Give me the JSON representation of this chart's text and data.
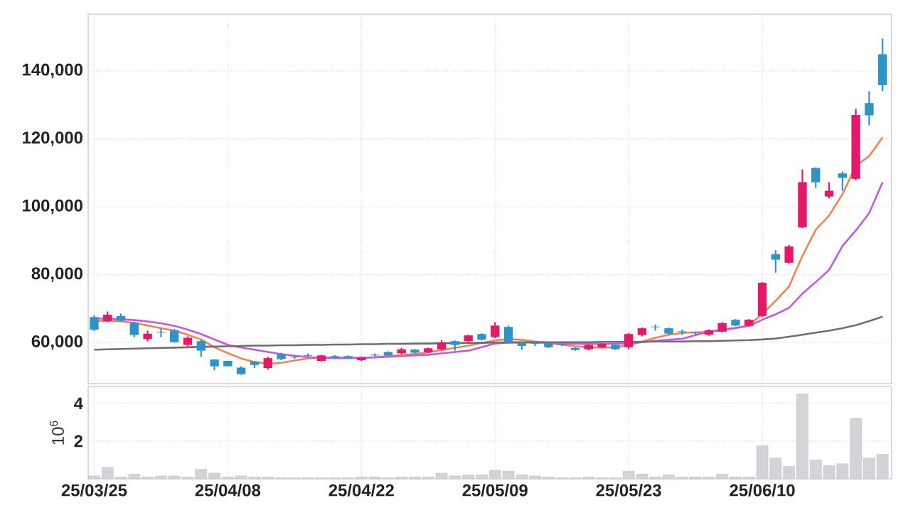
{
  "chart_data": [
    {
      "type": "candlestick",
      "categories": [
        null,
        null,
        null,
        null,
        null,
        null,
        null,
        null,
        null,
        null,
        null,
        null,
        null,
        null,
        null,
        null,
        null,
        null,
        null,
        null,
        null,
        null,
        null,
        null,
        null,
        null,
        null,
        null,
        null,
        null,
        null,
        null,
        null,
        null,
        null,
        null,
        null,
        null,
        null,
        null,
        null,
        null,
        null,
        null,
        null,
        null,
        null,
        null,
        null,
        null,
        null,
        null,
        null,
        null,
        null,
        null,
        null,
        null,
        null,
        null
      ],
      "ohlc": [
        [
          67500,
          68000,
          63400,
          63800
        ],
        [
          66300,
          69100,
          66000,
          68200
        ],
        [
          67800,
          68500,
          66100,
          66400
        ],
        [
          65900,
          66000,
          61500,
          62200
        ],
        [
          61000,
          63500,
          60300,
          62600
        ],
        [
          63100,
          64300,
          61600,
          62900
        ],
        [
          63600,
          64000,
          60000,
          60100
        ],
        [
          59300,
          61800,
          58900,
          61400
        ],
        [
          60400,
          60800,
          55800,
          57600
        ],
        [
          55000,
          55000,
          51800,
          53000
        ],
        [
          54600,
          54600,
          53000,
          53000
        ],
        [
          52600,
          53000,
          50500,
          50700
        ],
        [
          54400,
          54600,
          52500,
          53400
        ],
        [
          52500,
          55800,
          52000,
          55400
        ],
        [
          56600,
          57000,
          54800,
          55100
        ],
        [
          55800,
          56200,
          55200,
          55600
        ],
        [
          56300,
          56800,
          55700,
          56100
        ],
        [
          54600,
          56400,
          54400,
          56200
        ],
        [
          56000,
          56300,
          55400,
          55500
        ],
        [
          56000,
          56200,
          55300,
          55400
        ],
        [
          54800,
          55800,
          54600,
          55600
        ],
        [
          56400,
          56800,
          55900,
          56200
        ],
        [
          57200,
          57400,
          56000,
          56200
        ],
        [
          56800,
          58400,
          56500,
          58000
        ],
        [
          57900,
          58100,
          56700,
          57000
        ],
        [
          57100,
          58500,
          56900,
          58300
        ],
        [
          58000,
          60700,
          57800,
          60000
        ],
        [
          60400,
          60600,
          57600,
          59300
        ],
        [
          60400,
          62300,
          60200,
          62100
        ],
        [
          62500,
          62700,
          60600,
          60800
        ],
        [
          61600,
          66000,
          61300,
          65000
        ],
        [
          64600,
          65000,
          59900,
          60100
        ],
        [
          60000,
          60200,
          57900,
          59000
        ],
        [
          59800,
          60400,
          59000,
          59600
        ],
        [
          59700,
          59900,
          58400,
          58600
        ],
        [
          59400,
          59600,
          58900,
          59200
        ],
        [
          58400,
          58600,
          57600,
          57800
        ],
        [
          58000,
          59500,
          57700,
          59300
        ],
        [
          58600,
          59800,
          58400,
          59600
        ],
        [
          59300,
          59500,
          57800,
          58000
        ],
        [
          58600,
          62800,
          58000,
          62500
        ],
        [
          62200,
          64400,
          61800,
          64200
        ],
        [
          64700,
          65300,
          63500,
          64500
        ],
        [
          64200,
          64400,
          62400,
          62600
        ],
        [
          63300,
          63800,
          62200,
          63100
        ],
        [
          62900,
          63200,
          62300,
          62700
        ],
        [
          62300,
          63900,
          62000,
          63600
        ],
        [
          63200,
          66000,
          63000,
          65700
        ],
        [
          66700,
          66900,
          64800,
          65000
        ],
        [
          64900,
          66900,
          64700,
          66700
        ],
        [
          67800,
          77800,
          67500,
          77600
        ],
        [
          86000,
          87200,
          80600,
          84400
        ],
        [
          83500,
          88700,
          83200,
          88300
        ],
        [
          93900,
          111000,
          93700,
          107200
        ],
        [
          111400,
          111600,
          105500,
          107200
        ],
        [
          103000,
          107200,
          102500,
          104700
        ],
        [
          109800,
          110400,
          104700,
          108500
        ],
        [
          108200,
          128800,
          107800,
          127000
        ],
        [
          130500,
          134000,
          124000,
          126900
        ],
        [
          144900,
          149500,
          134000,
          135800
        ]
      ],
      "colors": [
        "#2d94c9",
        "#e5196b",
        "#2d94c9",
        "#2d94c9",
        "#e5196b",
        "#2d94c9",
        "#2d94c9",
        "#e5196b",
        "#2d94c9",
        "#2d94c9",
        "#2d94c9",
        "#2d94c9",
        "#2d94c9",
        "#e5196b",
        "#2d94c9",
        "#2d94c9",
        "#2d94c9",
        "#e5196b",
        "#2d94c9",
        "#2d94c9",
        "#e5196b",
        "#2d94c9",
        "#2d94c9",
        "#e5196b",
        "#2d94c9",
        "#e5196b",
        "#e5196b",
        "#2d94c9",
        "#e5196b",
        "#2d94c9",
        "#e5196b",
        "#2d94c9",
        "#2d94c9",
        "#2d94c9",
        "#2d94c9",
        "#2d94c9",
        "#2d94c9",
        "#e5196b",
        "#e5196b",
        "#2d94c9",
        "#e5196b",
        "#e5196b",
        "#2d94c9",
        "#2d94c9",
        "#2d94c9",
        "#2d94c9",
        "#e5196b",
        "#e5196b",
        "#2d94c9",
        "#e5196b",
        "#e5196b",
        "#2d94c9",
        "#e5196b",
        "#e5196b",
        "#2d94c9",
        "#e5196b",
        "#2d94c9",
        "#e5196b",
        "#2d94c9",
        "#2d94c9"
      ],
      "series": [
        {
          "type": "line",
          "color": "#f0844c",
          "values": [
            66300,
            66400,
            66200,
            65800,
            65000,
            64200,
            63500,
            62300,
            60900,
            58600,
            56900,
            55300,
            54300,
            53700,
            54000,
            54700,
            55300,
            55600,
            55600,
            55500,
            55500,
            55700,
            56000,
            56300,
            56600,
            57100,
            57800,
            58400,
            59100,
            59900,
            60600,
            61000,
            60800,
            60300,
            59800,
            59400,
            58900,
            58600,
            58500,
            58600,
            59200,
            60300,
            61400,
            62300,
            62800,
            63000,
            63100,
            63600,
            64200,
            65100,
            68400,
            72300,
            76500,
            85500,
            93200,
            97400,
            103700,
            112000,
            114900,
            120400
          ]
        },
        {
          "type": "line",
          "color": "#c656e8",
          "values": [
            67100,
            67000,
            66800,
            66600,
            66200,
            65700,
            64900,
            63800,
            62500,
            60900,
            59300,
            58500,
            57900,
            57200,
            56600,
            56100,
            55700,
            55500,
            55400,
            55400,
            55500,
            55600,
            55800,
            56000,
            56200,
            56400,
            56800,
            57200,
            57600,
            58600,
            59700,
            60000,
            60100,
            60000,
            59900,
            59700,
            59600,
            59600,
            59600,
            59600,
            59700,
            60100,
            60500,
            60800,
            61100,
            62200,
            63200,
            63800,
            64300,
            64900,
            66700,
            68300,
            70200,
            74400,
            77800,
            81400,
            88400,
            93000,
            98100,
            107200
          ]
        },
        {
          "type": "line",
          "color": "#6e6e6e",
          "values": [
            57900,
            58000,
            58100,
            58200,
            58300,
            58400,
            58500,
            58600,
            58700,
            58800,
            58900,
            59000,
            59100,
            59100,
            59200,
            59200,
            59300,
            59300,
            59400,
            59400,
            59500,
            59500,
            59600,
            59600,
            59700,
            59700,
            59800,
            59800,
            59900,
            59900,
            60000,
            60000,
            60000,
            60100,
            60100,
            60100,
            60100,
            60100,
            60200,
            60200,
            60200,
            60200,
            60300,
            60300,
            60300,
            60400,
            60400,
            60500,
            60600,
            60700,
            60900,
            61200,
            61700,
            62300,
            62900,
            63500,
            64200,
            65100,
            66300,
            67600
          ]
        }
      ],
      "ylim": [
        47900,
        156700
      ],
      "yticks": [
        {
          "value": 60000,
          "label": "60,000"
        },
        {
          "value": 80000,
          "label": "80,000"
        },
        {
          "value": 100000,
          "label": "100,000"
        },
        {
          "value": 120000,
          "label": "120,000"
        },
        {
          "value": 140000,
          "label": "140,000"
        }
      ],
      "grid": true,
      "tick_labels": "y"
    },
    {
      "type": "bar",
      "categories": [
        "25/03/25",
        null,
        null,
        null,
        null,
        null,
        null,
        null,
        null,
        null,
        "25/04/08",
        null,
        null,
        null,
        null,
        null,
        null,
        null,
        null,
        null,
        "25/04/22",
        null,
        null,
        null,
        null,
        null,
        null,
        null,
        null,
        null,
        "25/05/09",
        null,
        null,
        null,
        null,
        null,
        null,
        null,
        null,
        null,
        "25/05/23",
        null,
        null,
        null,
        null,
        null,
        null,
        null,
        null,
        null,
        "25/06/10",
        null,
        null,
        null,
        null,
        null,
        null,
        null,
        null,
        null
      ],
      "values": [
        0.15,
        0.6,
        0.1,
        0.25,
        0.1,
        0.15,
        0.15,
        0.1,
        0.5,
        0.3,
        0.1,
        0.15,
        0.1,
        0.1,
        0.05,
        0.05,
        0.05,
        0.05,
        0.05,
        0.05,
        0.1,
        0.1,
        0.05,
        0.1,
        0.1,
        0.1,
        0.3,
        0.15,
        0.2,
        0.2,
        0.45,
        0.4,
        0.2,
        0.15,
        0.1,
        0.05,
        0.05,
        0.1,
        0.05,
        0.05,
        0.4,
        0.25,
        0.1,
        0.2,
        0.1,
        0.1,
        0.1,
        0.25,
        0.1,
        0.1,
        1.75,
        1.1,
        0.65,
        4.5,
        1.0,
        0.7,
        0.8,
        3.2,
        1.1,
        1.3
      ],
      "color": "#d4d4d8",
      "ylim": [
        0,
        4.9
      ],
      "yticks": [
        2,
        4
      ],
      "ylabel": "10$^{6}$",
      "grid": true
    }
  ]
}
